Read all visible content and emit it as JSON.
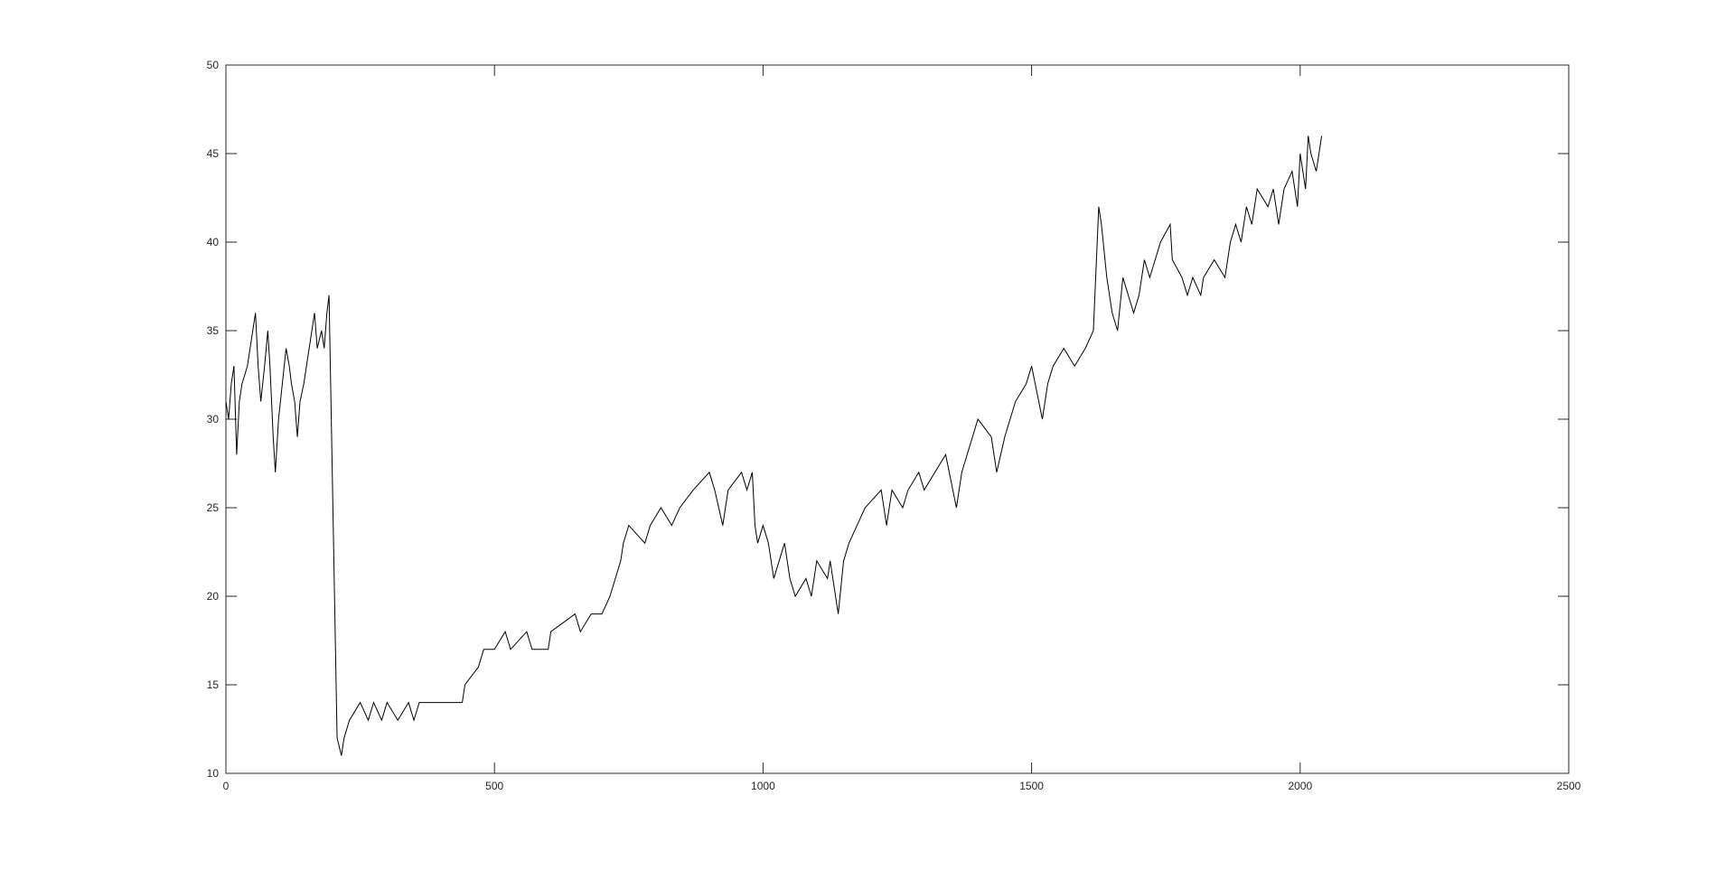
{
  "chart_data": {
    "type": "line",
    "x": [
      0,
      5,
      10,
      15,
      20,
      25,
      30,
      40,
      50,
      55,
      60,
      65,
      72,
      78,
      82,
      88,
      92,
      98,
      105,
      112,
      118,
      122,
      128,
      133,
      138,
      145,
      150,
      155,
      160,
      165,
      170,
      178,
      183,
      188,
      192,
      207,
      215,
      220,
      230,
      250,
      265,
      275,
      290,
      300,
      320,
      340,
      350,
      360,
      440,
      445,
      470,
      480,
      500,
      520,
      530,
      560,
      570,
      600,
      605,
      650,
      660,
      680,
      700,
      715,
      725,
      735,
      740,
      750,
      780,
      790,
      810,
      830,
      845,
      870,
      900,
      910,
      925,
      935,
      960,
      970,
      980,
      985,
      990,
      1000,
      1010,
      1020,
      1030,
      1040,
      1050,
      1060,
      1080,
      1090,
      1100,
      1120,
      1125,
      1130,
      1140,
      1150,
      1160,
      1190,
      1220,
      1230,
      1240,
      1260,
      1270,
      1290,
      1300,
      1340,
      1360,
      1370,
      1380,
      1390,
      1400,
      1425,
      1435,
      1450,
      1470,
      1490,
      1500,
      1520,
      1530,
      1540,
      1560,
      1580,
      1600,
      1615,
      1625,
      1630,
      1640,
      1650,
      1660,
      1670,
      1690,
      1700,
      1710,
      1720,
      1730,
      1740,
      1758,
      1762,
      1780,
      1790,
      1800,
      1815,
      1820,
      1840,
      1860,
      1870,
      1880,
      1890,
      1900,
      1910,
      1920,
      1940,
      1950,
      1960,
      1970,
      1985,
      1995,
      2000,
      2010,
      2015,
      2020,
      2030,
      2040
    ],
    "series": [
      {
        "color": "#000000",
        "values": [
          31,
          30,
          32,
          33,
          28,
          31,
          32,
          33,
          35,
          36,
          33,
          31,
          33,
          35,
          33,
          29,
          27,
          30,
          32,
          34,
          33,
          32,
          31,
          29,
          31,
          32,
          33,
          34,
          35,
          36,
          34,
          35,
          34,
          36,
          37,
          12,
          11,
          12,
          13,
          14,
          13,
          14,
          13,
          14,
          13,
          14,
          13,
          14,
          14,
          15,
          16,
          17,
          17,
          18,
          17,
          18,
          17,
          17,
          18,
          19,
          18,
          19,
          19,
          20,
          21,
          22,
          23,
          24,
          23,
          24,
          25,
          24,
          25,
          26,
          27,
          26,
          24,
          26,
          27,
          26,
          27,
          24,
          23,
          24,
          23,
          21,
          22,
          23,
          21,
          20,
          21,
          20,
          22,
          21,
          22,
          21,
          19,
          22,
          23,
          25,
          26,
          24,
          26,
          25,
          26,
          27,
          26,
          28,
          25,
          27,
          28,
          29,
          30,
          29,
          27,
          29,
          31,
          32,
          33,
          30,
          32,
          33,
          34,
          33,
          34,
          35,
          42,
          41,
          38,
          36,
          35,
          38,
          36,
          37,
          39,
          38,
          39,
          40,
          41,
          39,
          38,
          37,
          38,
          37,
          38,
          39,
          38,
          40,
          41,
          40,
          42,
          41,
          43,
          42,
          43,
          41,
          43,
          44,
          42,
          45,
          43,
          46,
          45,
          44,
          46
        ]
      }
    ],
    "xlim": [
      0,
      2500
    ],
    "xticks": [
      0,
      500,
      1000,
      1500,
      2000,
      2500
    ],
    "ylim": [
      10,
      50
    ],
    "yticks": [
      10,
      15,
      20,
      25,
      30,
      35,
      40,
      45,
      50
    ]
  }
}
